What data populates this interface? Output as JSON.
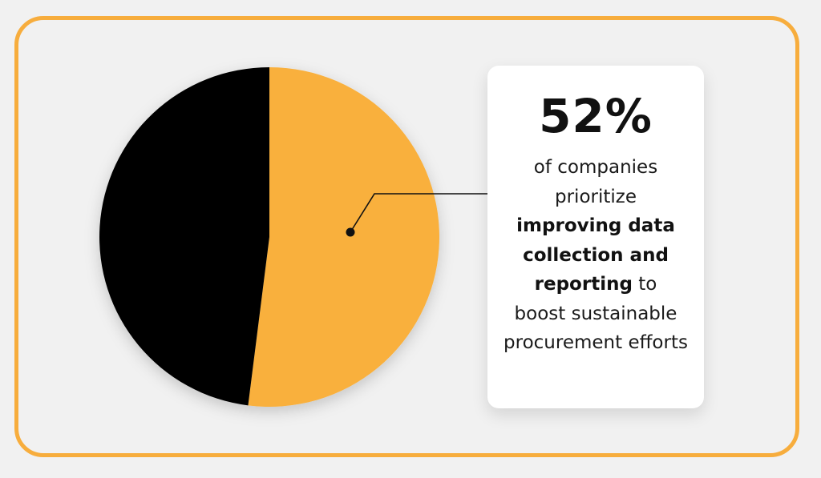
{
  "chart_data": {
    "type": "pie",
    "slices": [
      {
        "value": 52,
        "color": "#f9b03d"
      },
      {
        "value": 48,
        "color": "#000000"
      }
    ]
  },
  "callout": {
    "percent": "52%",
    "line1": "of companies prioritize",
    "bold": "improving data collection and reporting",
    "line_after_bold": " to",
    "line_end": "boost sustainable procurement efforts"
  },
  "colors": {
    "accent": "#f7ad3d",
    "background": "#f1f1f1",
    "card": "#ffffff"
  }
}
